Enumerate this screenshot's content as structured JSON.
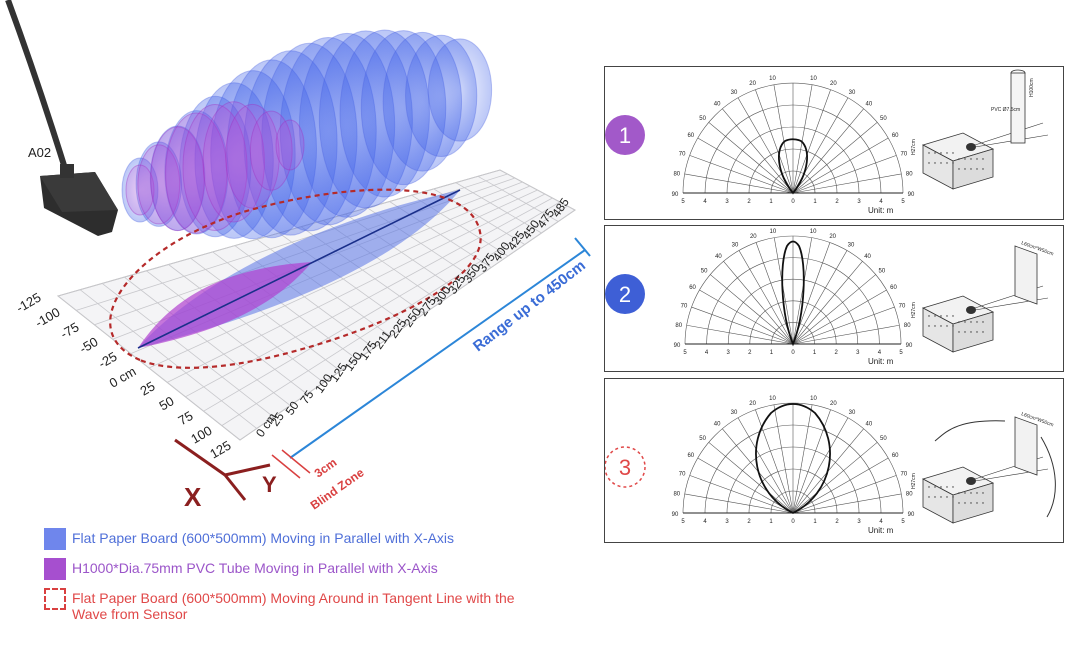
{
  "sensor_label": "A02",
  "range_label": "Range up to 450cm",
  "blind_zone": {
    "value": "3cm",
    "label": "Blind Zone"
  },
  "axis_labels": {
    "x": "X",
    "y": "Y"
  },
  "y_ticks": [
    "-125",
    "-100",
    "-75",
    "-50",
    "-25",
    "0 cm",
    "25",
    "50",
    "75",
    "100",
    "125"
  ],
  "x_ticks": [
    "0 cm",
    "25",
    "50",
    "75",
    "100",
    "125",
    "150",
    "175",
    "211",
    "225",
    "250",
    "275",
    "300",
    "325",
    "350",
    "375",
    "400",
    "425",
    "450",
    "475",
    "485"
  ],
  "legend": [
    {
      "label": "Flat Paper Board (600*500mm) Moving in Parallel with X-Axis",
      "color": "#6f86ec"
    },
    {
      "label": "H1000*Dia.75mm PVC Tube Moving in Parallel with X-Axis",
      "color": "#a64fcf"
    },
    {
      "label": "Flat Paper Board (600*500mm) Moving Around in Tangent Line with the Wave from Sensor",
      "color": "#e04848"
    }
  ],
  "panels": [
    {
      "number": "1",
      "unit": "Unit: m",
      "marker_color": "#a259c9",
      "marker_style": "filled",
      "obj_label": "PVC Ø7.5cm",
      "obj_label2": "H100cm",
      "height_label": "H27cm"
    },
    {
      "number": "2",
      "unit": "Unit: m",
      "marker_color": "#3e5fd6",
      "marker_style": "filled",
      "obj_label": "L60cm*W50cm",
      "height_label": "H27cm"
    },
    {
      "number": "3",
      "unit": "Unit: m",
      "marker_color": "#e04848",
      "marker_style": "dashed",
      "obj_label": "L60cm*W50cm",
      "height_label": "H27cm"
    }
  ],
  "polar": {
    "angle_labels_left": [
      "90",
      "80",
      "70",
      "60",
      "50",
      "40",
      "30",
      "20",
      "10"
    ],
    "angle_labels_right": [
      "0",
      "10",
      "20",
      "30",
      "40",
      "50",
      "60",
      "70",
      "80",
      "90"
    ],
    "dist_labels": [
      "5",
      "4",
      "3",
      "2",
      "1",
      "0",
      "1",
      "2",
      "3",
      "4",
      "5"
    ]
  }
}
